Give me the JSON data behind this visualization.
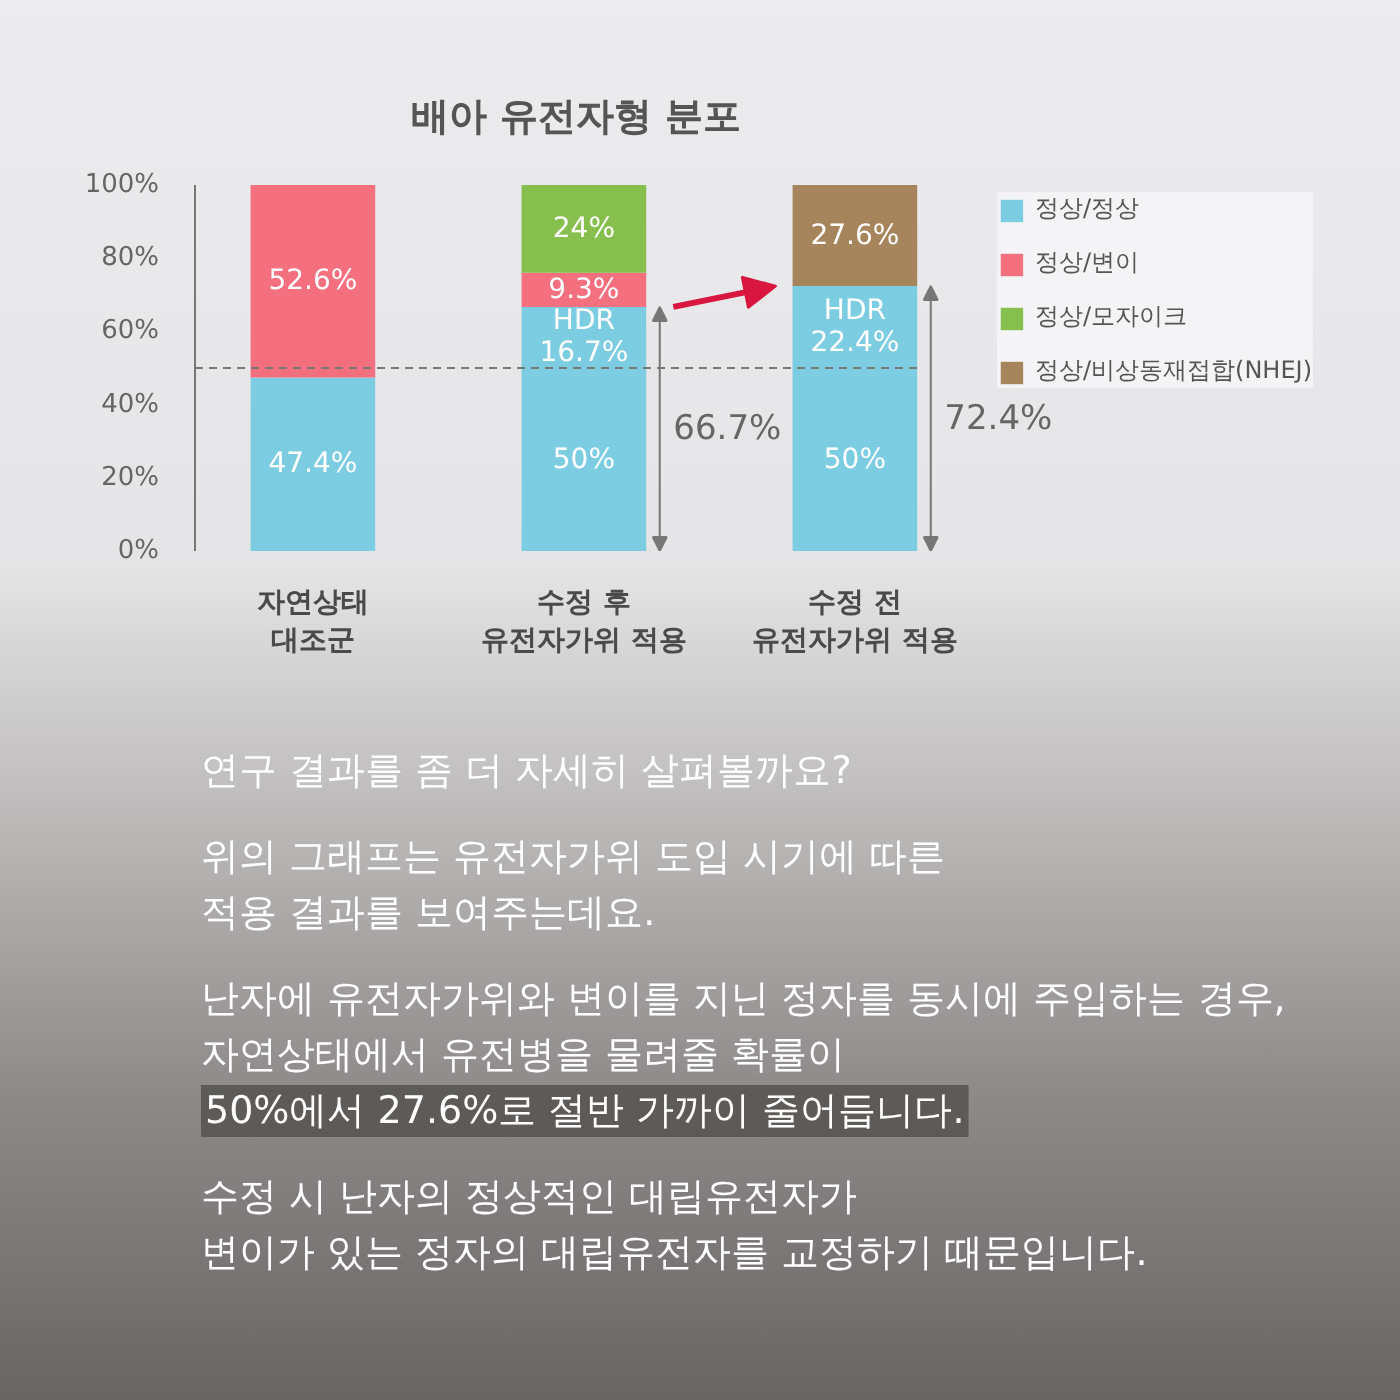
{
  "chart_data": {
    "type": "bar",
    "title": "배아 유전자형 분포",
    "stacked": true,
    "categories": [
      "자연상태\n대조군",
      "수정 후\n유전자가위 적용",
      "수정 전\n유전자가위 적용"
    ],
    "series": [
      {
        "name": "정상/정상",
        "color": "#7dcde2",
        "values": [
          47.4,
          50,
          50
        ],
        "value_labels": [
          "47.4%",
          "50%",
          "50%"
        ]
      },
      {
        "color": "#7dcde2",
        "values": [
          null,
          16.7,
          22.4
        ],
        "value_labels": [
          null,
          "HDR\n16.7%",
          "HDR\n22.4%"
        ]
      },
      {
        "name": "정상/변이",
        "color": "#f4707f",
        "values": [
          52.6,
          9.3,
          null
        ],
        "value_labels": [
          "52.6%",
          "9.3%",
          null
        ]
      },
      {
        "name": "정상/모자이크",
        "color": "#86bf4e",
        "values": [
          null,
          24,
          null
        ],
        "value_labels": [
          null,
          "24%",
          null
        ]
      },
      {
        "name": "정상/비상동재접합(NHEJ)",
        "color": "#a6855d",
        "values": [
          null,
          null,
          27.6
        ],
        "value_labels": [
          null,
          null,
          "27.6%"
        ]
      }
    ],
    "ylim": [
      0,
      100
    ],
    "yticks": [
      {
        "value": 0,
        "label": "0%"
      },
      {
        "value": 20,
        "label": "20%"
      },
      {
        "value": 40,
        "label": "40%"
      },
      {
        "value": 60,
        "label": "60%"
      },
      {
        "value": 80,
        "label": "80%"
      },
      {
        "value": 100,
        "label": "100%"
      }
    ],
    "ref_lines": [
      {
        "axis": "y",
        "value": 50,
        "line_style": "dashed",
        "color": "#777777"
      }
    ],
    "legend": "top right",
    "annotations": [
      "66.7%",
      "72.4%",
      "연구 결과를 좀 더 자세히 살펴볼까요?",
      "위의 그래프는 유전자가위 도입 시기에 따른\n적용 결과를 보여주는데요.",
      "난자에 유전자가위와 변이를 지닌 정자를 동시에 주입하는 경우,\n자연상태에서 유전병을 물려줄 확률이\n50%에서 27.6%로 절반 가까이 줄어듭니다.",
      "수정 시 난자의 정상적인 대립유전자가\n변이가 있는 정자의 대립유전자를 교정하기 때문입니다."
    ]
  }
}
